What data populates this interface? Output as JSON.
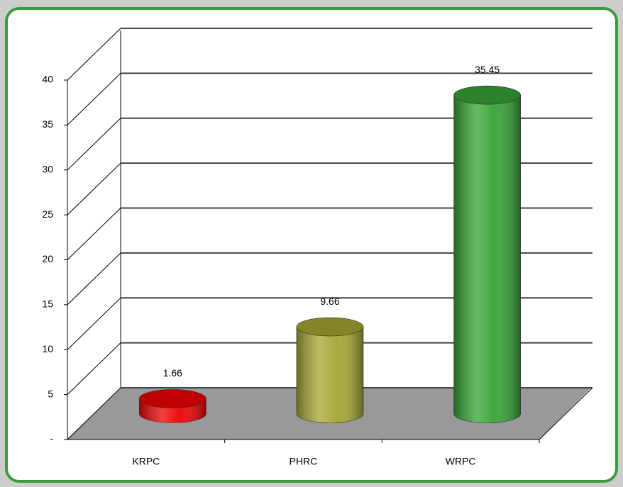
{
  "chart_data": {
    "type": "bar3d",
    "categories": [
      "KRPC",
      "PHRC",
      "WRPC"
    ],
    "values": [
      1.66,
      9.66,
      35.45
    ],
    "colors": [
      "#ee0000",
      "#a6a632",
      "#35a335"
    ],
    "ylim": [
      0,
      40
    ],
    "yticks": [
      {
        "value": 0,
        "label": "-"
      },
      5,
      10,
      15,
      20,
      25,
      30,
      35,
      40
    ],
    "grid": true
  }
}
